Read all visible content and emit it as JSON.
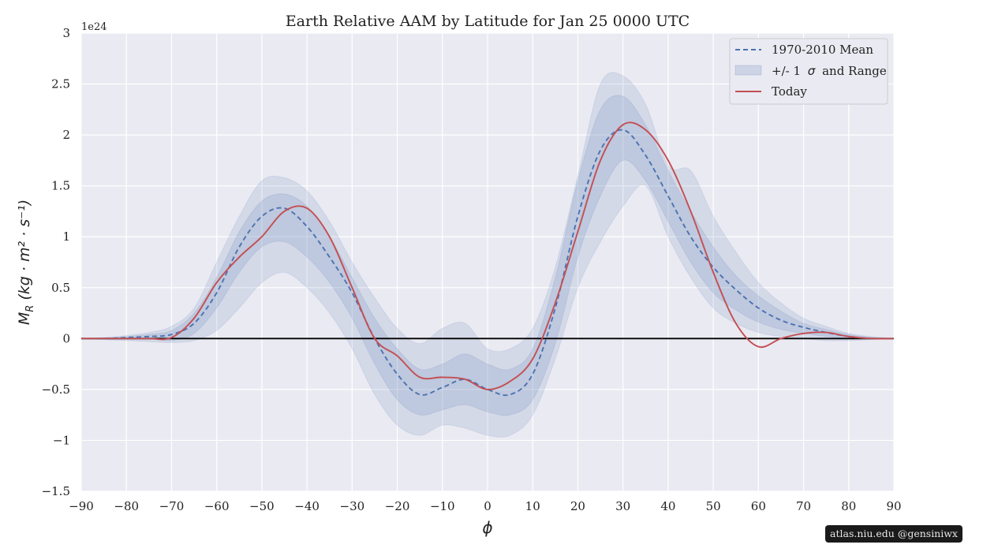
{
  "chart_data": {
    "type": "line",
    "title": "Earth Relative AAM by Latitude for Jan 25 0000 UTC",
    "xlabel": "ϕ",
    "ylabel": "M_R (kg·m²·s⁻¹)",
    "y_offset_label": "1e24",
    "xlim": [
      -90,
      90
    ],
    "ylim": [
      -1.5,
      3.0
    ],
    "xticks": [
      -90,
      -80,
      -70,
      -60,
      -50,
      -40,
      -30,
      -20,
      -10,
      0,
      10,
      20,
      30,
      40,
      50,
      60,
      70,
      80,
      90
    ],
    "yticks": [
      -1.5,
      -1.0,
      -0.5,
      0.0,
      0.5,
      1.0,
      1.5,
      2.0,
      2.5,
      3.0
    ],
    "grid": true,
    "legend_position": "top-right",
    "legend": {
      "mean": "1970-2010 Mean",
      "band_prefix": "+/- 1",
      "band_sigma": "σ",
      "band_suffix": "and Range",
      "today": "Today"
    },
    "x": [
      -90,
      -85,
      -80,
      -75,
      -70,
      -65,
      -60,
      -55,
      -50,
      -45,
      -40,
      -35,
      -30,
      -25,
      -20,
      -15,
      -10,
      -5,
      0,
      5,
      10,
      15,
      20,
      25,
      30,
      35,
      40,
      45,
      50,
      55,
      60,
      65,
      70,
      75,
      80,
      85,
      90
    ],
    "series": [
      {
        "name": "1970-2010 Mean",
        "style": "dashed",
        "color": "#4c72b0",
        "values": [
          0,
          0,
          0.01,
          0.02,
          0.04,
          0.15,
          0.45,
          0.9,
          1.2,
          1.28,
          1.1,
          0.8,
          0.45,
          0.0,
          -0.35,
          -0.55,
          -0.48,
          -0.4,
          -0.5,
          -0.55,
          -0.35,
          0.3,
          1.2,
          1.85,
          2.05,
          1.8,
          1.4,
          1.0,
          0.7,
          0.48,
          0.3,
          0.18,
          0.11,
          0.06,
          0.02,
          0.0,
          0
        ]
      },
      {
        "name": "Today",
        "style": "solid",
        "color": "#c44e52",
        "values": [
          0,
          0,
          0,
          0.0,
          0.01,
          0.2,
          0.55,
          0.8,
          1.0,
          1.25,
          1.28,
          1.0,
          0.5,
          0.0,
          -0.17,
          -0.38,
          -0.38,
          -0.4,
          -0.5,
          -0.42,
          -0.2,
          0.35,
          1.05,
          1.75,
          2.1,
          2.05,
          1.75,
          1.25,
          0.65,
          0.15,
          -0.08,
          0.0,
          0.05,
          0.06,
          0.02,
          0.0,
          0
        ]
      }
    ],
    "bands": [
      {
        "name": "range",
        "color": "#4c72b0",
        "opacity": 0.14,
        "lower": [
          0,
          -0.01,
          -0.02,
          -0.03,
          -0.04,
          -0.02,
          0.08,
          0.3,
          0.55,
          0.65,
          0.5,
          0.25,
          -0.1,
          -0.55,
          -0.85,
          -0.95,
          -0.85,
          -0.88,
          -0.95,
          -0.95,
          -0.75,
          -0.2,
          0.5,
          0.95,
          1.3,
          1.5,
          1.0,
          0.6,
          0.3,
          0.15,
          0.06,
          0.02,
          0.0,
          -0.02,
          -0.02,
          -0.01,
          0
        ],
        "upper": [
          0,
          0.01,
          0.03,
          0.06,
          0.12,
          0.3,
          0.75,
          1.2,
          1.55,
          1.58,
          1.45,
          1.15,
          0.75,
          0.4,
          0.1,
          -0.05,
          0.1,
          0.15,
          -0.1,
          -0.1,
          0.1,
          0.7,
          1.6,
          2.5,
          2.58,
          2.3,
          1.7,
          1.65,
          1.2,
          0.85,
          0.55,
          0.35,
          0.2,
          0.12,
          0.05,
          0.02,
          0
        ]
      },
      {
        "name": "sigma",
        "color": "#4c72b0",
        "opacity": 0.16,
        "lower": [
          0,
          0,
          0,
          0,
          -0.02,
          0.05,
          0.3,
          0.65,
          0.9,
          0.95,
          0.8,
          0.55,
          0.2,
          -0.25,
          -0.6,
          -0.75,
          -0.7,
          -0.65,
          -0.72,
          -0.75,
          -0.6,
          -0.05,
          0.8,
          1.4,
          1.75,
          1.55,
          1.15,
          0.75,
          0.45,
          0.28,
          0.16,
          0.09,
          0.05,
          0.02,
          0.0,
          0,
          0
        ],
        "upper": [
          0,
          0,
          0.02,
          0.04,
          0.08,
          0.25,
          0.6,
          1.05,
          1.35,
          1.42,
          1.3,
          1.0,
          0.6,
          0.2,
          -0.1,
          -0.3,
          -0.25,
          -0.15,
          -0.25,
          -0.3,
          -0.1,
          0.6,
          1.55,
          2.25,
          2.38,
          2.1,
          1.65,
          1.25,
          0.9,
          0.62,
          0.42,
          0.27,
          0.15,
          0.09,
          0.04,
          0.01,
          0
        ]
      }
    ],
    "zero_line": {
      "y": 0,
      "color": "#000000"
    }
  },
  "colors": {
    "plot_background": "#eaeaf2",
    "grid": "#ffffff",
    "mean": "#4c72b0",
    "today": "#c44e52"
  },
  "footer": {
    "credit": "atlas.niu.edu  @gensiniwx"
  }
}
